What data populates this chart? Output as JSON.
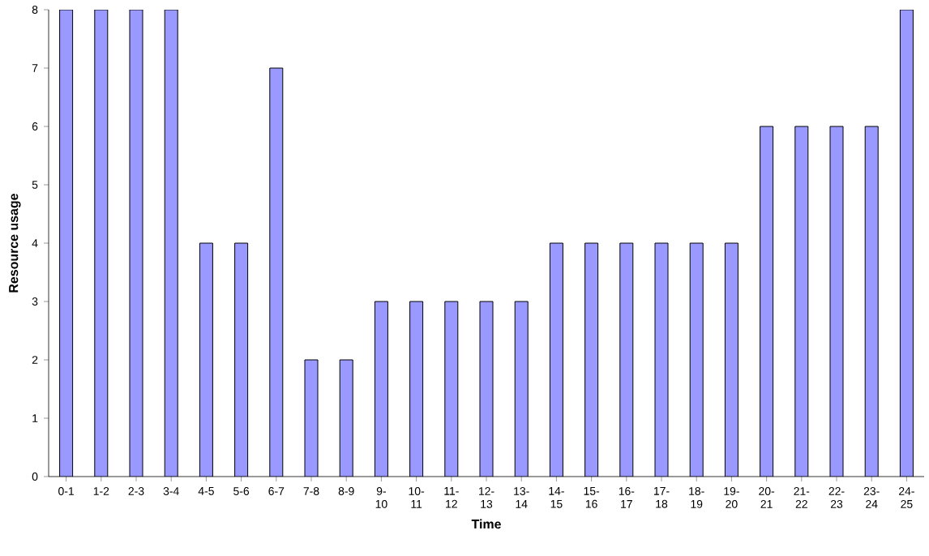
{
  "chart_data": {
    "type": "bar",
    "xlabel": "Time",
    "ylabel": "Resource usage",
    "categories": [
      "0-1",
      "1-2",
      "2-3",
      "3-4",
      "4-5",
      "5-6",
      "6-7",
      "7-8",
      "8-9",
      "9-10",
      "10-11",
      "11-12",
      "12-13",
      "13-14",
      "14-15",
      "15-16",
      "16-17",
      "17-18",
      "18-19",
      "19-20",
      "20-21",
      "21-22",
      "22-23",
      "23-24",
      "24-25"
    ],
    "values": [
      8,
      8,
      8,
      8,
      4,
      4,
      7,
      2,
      2,
      3,
      3,
      3,
      3,
      3,
      4,
      4,
      4,
      4,
      4,
      4,
      6,
      6,
      6,
      6,
      8
    ],
    "color": "#9999ff",
    "ylim": [
      0,
      8
    ],
    "yticks": [
      0,
      1,
      2,
      3,
      4,
      5,
      6,
      7,
      8
    ],
    "grid": false
  }
}
